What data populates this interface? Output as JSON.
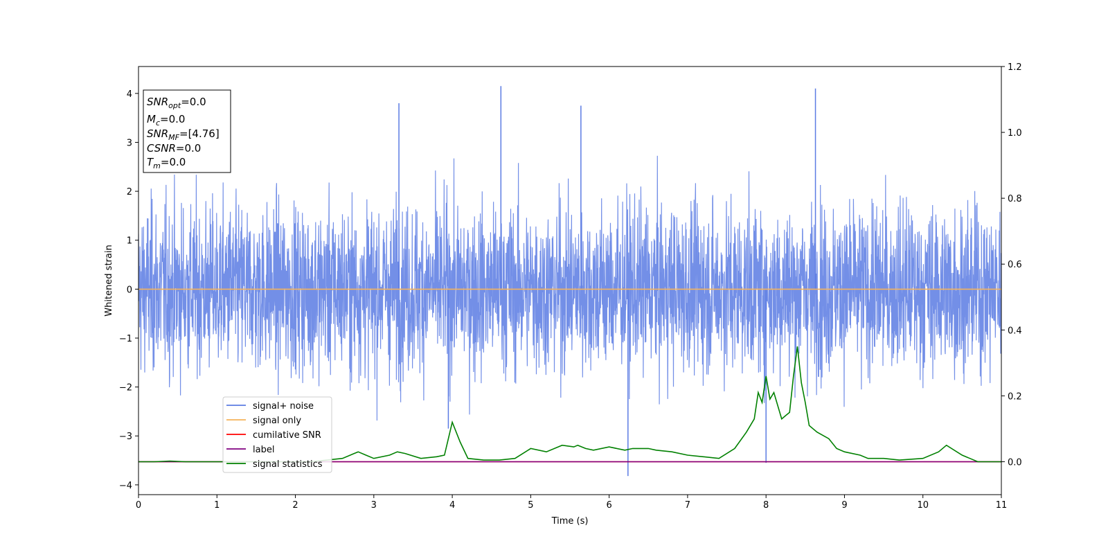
{
  "chart_data": {
    "type": "line",
    "title": "",
    "xlabel": "Time (s)",
    "ylabel": "Whitened strain",
    "xlim": [
      0,
      11
    ],
    "ylim": [
      -4.2,
      4.55
    ],
    "y2lim": [
      -0.1,
      1.2
    ],
    "xticks": [
      "0",
      "1",
      "2",
      "3",
      "4",
      "5",
      "6",
      "7",
      "8",
      "9",
      "10",
      "11"
    ],
    "yticks": [
      "−4",
      "−3",
      "−2",
      "−1",
      "0",
      "1",
      "2",
      "3",
      "4"
    ],
    "y2ticks": [
      "0.0",
      "0.2",
      "0.4",
      "0.6",
      "0.8",
      "1.0",
      "1.2"
    ],
    "grid": false,
    "legend_position": "lower-left",
    "info_box": {
      "snr_opt": "=0.0",
      "mc": "=0.0",
      "snr_mf": "=[4.76]",
      "csnr": "=0.0",
      "tm": "=0.0"
    },
    "series": [
      {
        "name": "signal+ noise",
        "color": "#5b7be3",
        "description_axis": "left",
        "kind": "noise",
        "envelope": {
          "max_peak": 4.15,
          "min_peak": -3.82,
          "typical_max": 2.3,
          "typical_min": -2.0
        },
        "spikes": [
          [
            4.62,
            4.15
          ],
          [
            8.63,
            4.1
          ],
          [
            3.32,
            3.8
          ],
          [
            5.64,
            3.75
          ],
          [
            6.24,
            -3.82
          ],
          [
            8.0,
            -3.55
          ],
          [
            3.95,
            -2.85
          ]
        ]
      },
      {
        "name": "signal only",
        "color": "#f5b35a",
        "axis": "left",
        "x": [
          0,
          11
        ],
        "y": [
          0,
          0
        ]
      },
      {
        "name": "cumilative SNR",
        "color": "#ff0000",
        "axis": "right",
        "x": [
          0,
          11
        ],
        "y": [
          0,
          0
        ]
      },
      {
        "name": "label",
        "color": "#800080",
        "axis": "right",
        "x": [
          0,
          11
        ],
        "y": [
          0,
          0
        ]
      },
      {
        "name": "signal statistics",
        "color": "#008000",
        "axis": "right",
        "x": [
          0,
          0.2,
          0.4,
          0.6,
          0.8,
          1.0,
          1.2,
          1.4,
          1.6,
          1.8,
          2.0,
          2.2,
          2.4,
          2.6,
          2.8,
          2.9,
          3.0,
          3.2,
          3.3,
          3.4,
          3.6,
          3.8,
          3.9,
          4.0,
          4.1,
          4.2,
          4.4,
          4.6,
          4.8,
          5.0,
          5.2,
          5.4,
          5.55,
          5.6,
          5.7,
          5.8,
          6.0,
          6.2,
          6.3,
          6.5,
          6.6,
          6.8,
          7.0,
          7.2,
          7.4,
          7.6,
          7.75,
          7.85,
          7.9,
          7.95,
          8.0,
          8.05,
          8.1,
          8.2,
          8.25,
          8.3,
          8.35,
          8.4,
          8.45,
          8.5,
          8.55,
          8.65,
          8.8,
          8.9,
          9.0,
          9.2,
          9.3,
          9.5,
          9.7,
          10.0,
          10.2,
          10.3,
          10.5,
          10.7,
          11.0
        ],
        "y": [
          0,
          0,
          0.002,
          0,
          0,
          0,
          0,
          0,
          0,
          0,
          0,
          0,
          0.005,
          0.01,
          0.03,
          0.02,
          0.01,
          0.02,
          0.03,
          0.025,
          0.01,
          0.015,
          0.02,
          0.12,
          0.06,
          0.01,
          0.005,
          0.005,
          0.01,
          0.04,
          0.03,
          0.05,
          0.045,
          0.05,
          0.04,
          0.035,
          0.045,
          0.035,
          0.04,
          0.04,
          0.035,
          0.03,
          0.02,
          0.015,
          0.01,
          0.04,
          0.09,
          0.13,
          0.21,
          0.18,
          0.26,
          0.19,
          0.21,
          0.13,
          0.14,
          0.15,
          0.26,
          0.35,
          0.24,
          0.18,
          0.11,
          0.09,
          0.07,
          0.04,
          0.03,
          0.02,
          0.01,
          0.01,
          0.005,
          0.01,
          0.03,
          0.05,
          0.02,
          0.0,
          0.0
        ]
      }
    ]
  }
}
